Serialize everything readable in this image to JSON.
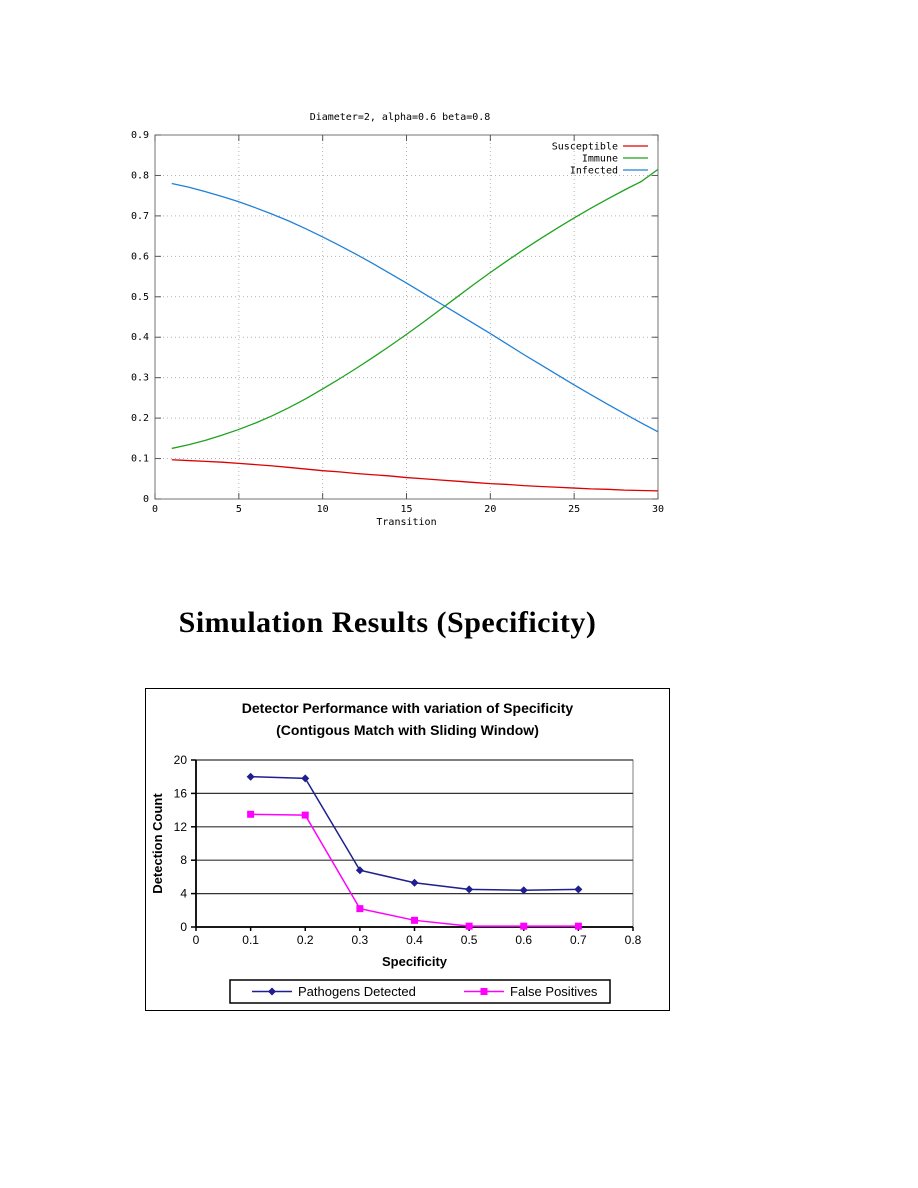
{
  "page": {
    "background": "#ffffff"
  },
  "heading": {
    "text": "Simulation Results (Specificity)"
  },
  "chart_data": [
    {
      "type": "line",
      "title": "Diameter=2, alpha=0.6 beta=0.8",
      "xlabel": "Transition",
      "xlim": [
        0,
        30
      ],
      "ylim": [
        0,
        0.9
      ],
      "x_ticks": [
        0,
        5,
        10,
        15,
        20,
        25,
        30
      ],
      "x_tick_labels": [
        "0",
        "5",
        "10",
        "15",
        "20",
        "25",
        "30"
      ],
      "y_ticks": [
        0,
        0.1,
        0.2,
        0.3,
        0.4,
        0.5,
        0.6,
        0.7,
        0.8,
        0.9
      ],
      "y_tick_labels": [
        "0",
        "0.1",
        "0.2",
        "0.3",
        "0.4",
        "0.5",
        "0.6",
        "0.7",
        "0.8",
        "0.9"
      ],
      "grid": "dotted-both-axes",
      "legend_position": "top-right-inside",
      "x": [
        1,
        2,
        3,
        4,
        5,
        6,
        7,
        8,
        9,
        10,
        11,
        12,
        13,
        14,
        15,
        16,
        17,
        18,
        19,
        20,
        21,
        22,
        23,
        24,
        25,
        26,
        27,
        28,
        29,
        30
      ],
      "series": [
        {
          "name": "Susceptible",
          "color": "#dd0000",
          "values": [
            0.097,
            0.095,
            0.093,
            0.091,
            0.088,
            0.085,
            0.082,
            0.078,
            0.074,
            0.07,
            0.067,
            0.063,
            0.06,
            0.057,
            0.053,
            0.05,
            0.047,
            0.044,
            0.041,
            0.038,
            0.036,
            0.033,
            0.031,
            0.029,
            0.027,
            0.025,
            0.024,
            0.022,
            0.021,
            0.02
          ]
        },
        {
          "name": "Immune",
          "color": "#1ea31e",
          "values": [
            0.125,
            0.134,
            0.145,
            0.158,
            0.172,
            0.188,
            0.206,
            0.226,
            0.248,
            0.272,
            0.297,
            0.323,
            0.35,
            0.378,
            0.407,
            0.437,
            0.468,
            0.499,
            0.53,
            0.56,
            0.589,
            0.617,
            0.644,
            0.67,
            0.695,
            0.719,
            0.742,
            0.764,
            0.785,
            0.815
          ]
        },
        {
          "name": "Infected",
          "color": "#2080d8",
          "values": [
            0.78,
            0.771,
            0.76,
            0.748,
            0.735,
            0.72,
            0.704,
            0.687,
            0.668,
            0.648,
            0.627,
            0.605,
            0.582,
            0.558,
            0.534,
            0.509,
            0.484,
            0.459,
            0.434,
            0.409,
            0.383,
            0.357,
            0.332,
            0.307,
            0.282,
            0.258,
            0.234,
            0.211,
            0.188,
            0.166
          ]
        }
      ]
    },
    {
      "type": "line",
      "title": "Detector Performance with variation of Specificity",
      "subtitle": "(Contigous Match with Sliding Window)",
      "xlabel": "Specificity",
      "ylabel": "Detection Count",
      "xlim": [
        0,
        0.8
      ],
      "ylim": [
        0,
        20
      ],
      "x_ticks": [
        0,
        0.1,
        0.2,
        0.3,
        0.4,
        0.5,
        0.6,
        0.7,
        0.8
      ],
      "x_tick_labels": [
        "0",
        "0.1",
        "0.2",
        "0.3",
        "0.4",
        "0.5",
        "0.6",
        "0.7",
        "0.8"
      ],
      "y_ticks": [
        0,
        4,
        8,
        12,
        16,
        20
      ],
      "y_tick_labels": [
        "0",
        "4",
        "8",
        "12",
        "16",
        "20"
      ],
      "grid": "horizontal",
      "legend_position": "bottom",
      "x": [
        0.1,
        0.2,
        0.3,
        0.4,
        0.5,
        0.6,
        0.7
      ],
      "series": [
        {
          "name": "Pathogens Detected",
          "color": "#1f1f8f",
          "marker": "diamond",
          "values": [
            18,
            17.8,
            6.8,
            5.3,
            4.5,
            4.4,
            4.5
          ]
        },
        {
          "name": "False Positives",
          "color": "#ff00ff",
          "marker": "square",
          "values": [
            13.5,
            13.4,
            2.2,
            0.8,
            0.1,
            0.1,
            0.1
          ]
        }
      ]
    }
  ]
}
